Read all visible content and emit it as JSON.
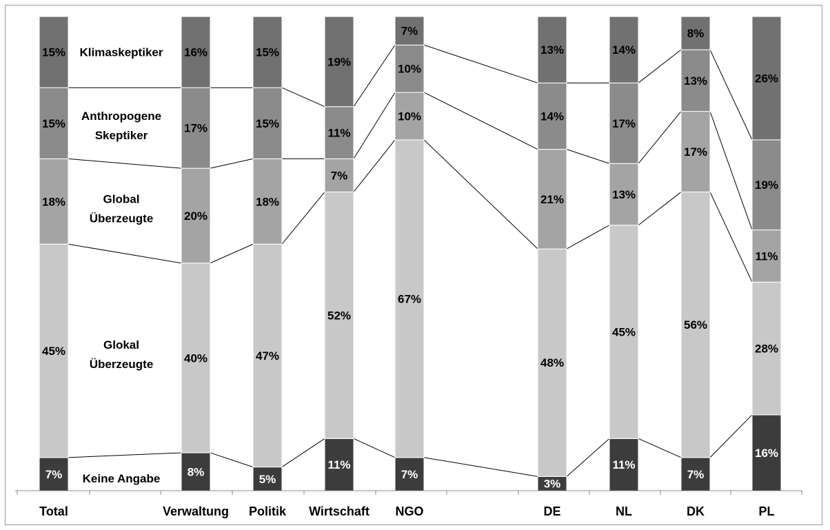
{
  "chart_data": {
    "type": "bar",
    "stacked": true,
    "percent_stacked": true,
    "categories": [
      "Total",
      "Verwaltung",
      "Politik",
      "Wirtschaft",
      "NGO",
      "DE",
      "NL",
      "DK",
      "PL"
    ],
    "series": [
      {
        "name": "Keine Angabe",
        "label_lines": [
          "Keine Angabe"
        ],
        "color": "#3c3c3c",
        "label_color": "#ffffff",
        "values": [
          7,
          8,
          5,
          11,
          7,
          3,
          11,
          7,
          16
        ]
      },
      {
        "name": "Glokal Überzeugte",
        "label_lines": [
          "Glokal",
          "Überzeugte"
        ],
        "color": "#c8c8c8",
        "label_color": "#000000",
        "values": [
          45,
          40,
          47,
          52,
          67,
          48,
          45,
          56,
          28
        ]
      },
      {
        "name": "Global Überzeugte",
        "label_lines": [
          "Global",
          "Überzeugte"
        ],
        "color": "#a4a4a4",
        "label_color": "#000000",
        "values": [
          18,
          20,
          18,
          7,
          10,
          21,
          13,
          17,
          11
        ]
      },
      {
        "name": "Anthropogene Skeptiker",
        "label_lines": [
          "Anthropogene",
          "Skeptiker"
        ],
        "color": "#8b8b8b",
        "label_color": "#000000",
        "values": [
          15,
          17,
          15,
          11,
          10,
          14,
          17,
          13,
          19
        ]
      },
      {
        "name": "Klimaskeptiker",
        "label_lines": [
          "Klimaskeptiker"
        ],
        "color": "#717171",
        "label_color": "#000000",
        "values": [
          15,
          16,
          15,
          19,
          7,
          13,
          14,
          8,
          26
        ]
      }
    ],
    "ylim": [
      0,
      100
    ],
    "grid": false,
    "legend": "series labels placed inside the chart between Total and Verwaltung"
  }
}
